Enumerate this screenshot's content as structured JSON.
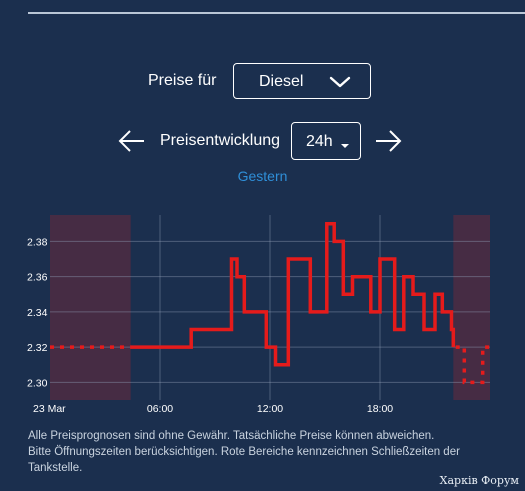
{
  "header": {
    "prices_for_label": "Preise für",
    "fuel_type": "Diesel",
    "price_development_label": "Preisentwicklung",
    "time_range": "24h",
    "day_label": "Gestern"
  },
  "chart_data": {
    "type": "line",
    "title": "",
    "xlabel": "",
    "ylabel": "",
    "x_ticks": [
      "23 Mar",
      "06:00",
      "12:00",
      "18:00"
    ],
    "x_range_hours": [
      0,
      24
    ],
    "y_ticks": [
      "2.30",
      "2.32",
      "2.34",
      "2.36",
      "2.38"
    ],
    "ylim": [
      2.29,
      2.395
    ],
    "grid": true,
    "closed_ranges_hours": [
      [
        0,
        4.4
      ],
      [
        22,
        24
      ]
    ],
    "series": [
      {
        "style": "step",
        "color": "#e51b1b",
        "x_hours": [
          0,
          1.1,
          2.2,
          3.3,
          4.4,
          5.5,
          6.6,
          7.7,
          8.8,
          9.9,
          10.2,
          10.6,
          11.0,
          11.8,
          12.3,
          13.0,
          13.5,
          14.2,
          14.8,
          15.1,
          15.5,
          16.0,
          16.5,
          17.5,
          18.0,
          18.5,
          18.8,
          19.3,
          19.8,
          20.4,
          21.0,
          21.4,
          21.9,
          22.0,
          22.6,
          23.1,
          23.6,
          24.0
        ],
        "values": [
          2.32,
          2.32,
          2.32,
          2.32,
          2.32,
          2.32,
          2.32,
          2.33,
          2.33,
          2.37,
          2.36,
          2.34,
          2.34,
          2.32,
          2.31,
          2.37,
          2.37,
          2.34,
          2.34,
          2.39,
          2.38,
          2.35,
          2.36,
          2.34,
          2.37,
          2.37,
          2.33,
          2.36,
          2.35,
          2.33,
          2.35,
          2.34,
          2.33,
          2.32,
          2.3,
          2.3,
          2.32,
          2.32
        ]
      }
    ]
  },
  "footer": {
    "line1": "Alle Preisprognosen sind ohne Gewähr. Tatsächliche Preise können abweichen.",
    "line2": "Bitte Öffnungszeiten berücksichtigen. Rote Bereiche kennzeichnen Schließzeiten der Tankstelle."
  },
  "watermark": "Харків Форум"
}
